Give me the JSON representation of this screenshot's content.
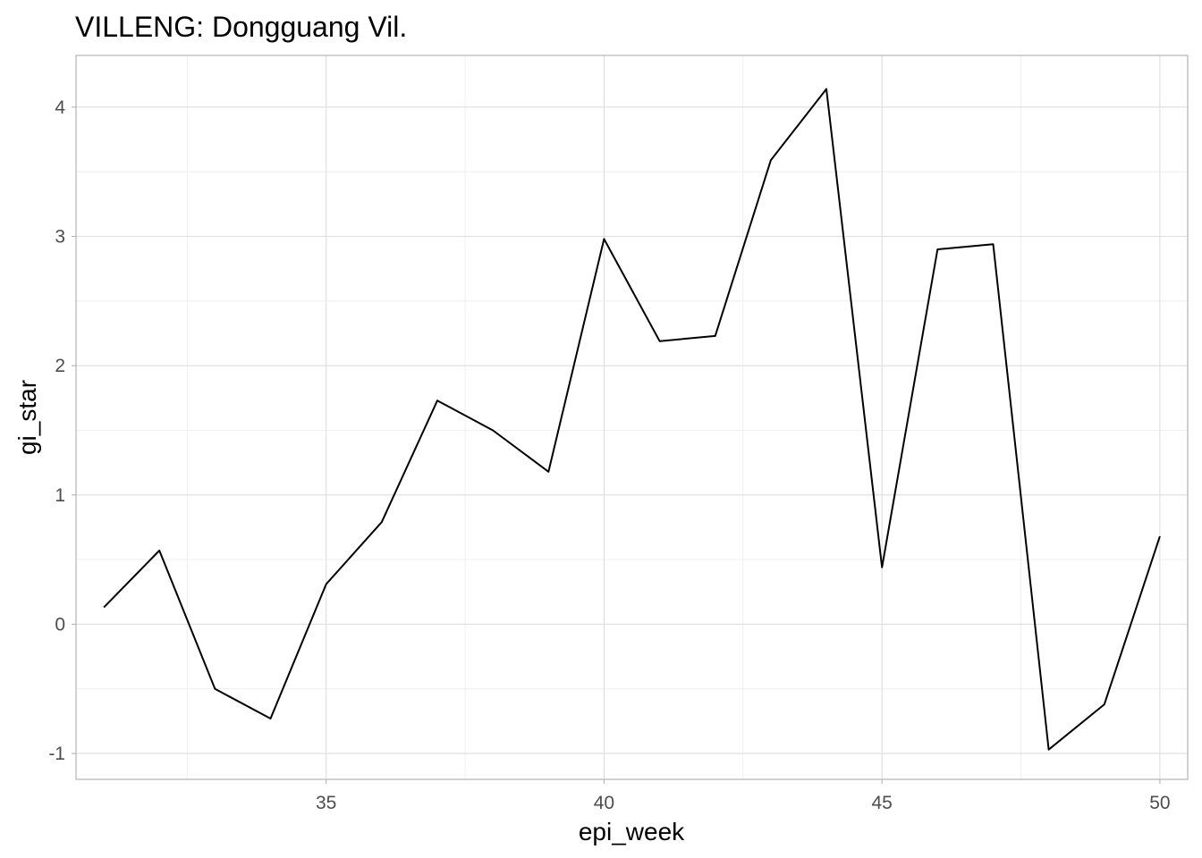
{
  "chart_data": {
    "type": "line",
    "title": "VILLENG: Dongguang Vil.",
    "xlabel": "epi_week",
    "ylabel": "gi_star",
    "xlim": [
      30.5,
      50.5
    ],
    "ylim": [
      -1.2,
      4.4
    ],
    "x_ticks": [
      35,
      40,
      45,
      50
    ],
    "y_ticks": [
      -1,
      0,
      1,
      2,
      3,
      4
    ],
    "x_tick_labels": [
      "35",
      "40",
      "45",
      "50"
    ],
    "y_tick_labels": [
      "-1",
      "0",
      "1",
      "2",
      "3",
      "4"
    ],
    "grid": true,
    "series": [
      {
        "color": "#000000",
        "x": [
          31,
          32,
          33,
          34,
          35,
          36,
          37,
          38,
          39,
          40,
          41,
          42,
          43,
          44,
          45,
          46,
          47,
          48,
          49,
          50
        ],
        "y": [
          0.13,
          0.57,
          -0.5,
          -0.73,
          0.31,
          0.79,
          1.73,
          1.5,
          1.18,
          2.98,
          2.19,
          2.23,
          3.59,
          4.14,
          0.44,
          2.9,
          2.94,
          -0.97,
          -0.62,
          0.68
        ]
      }
    ]
  }
}
